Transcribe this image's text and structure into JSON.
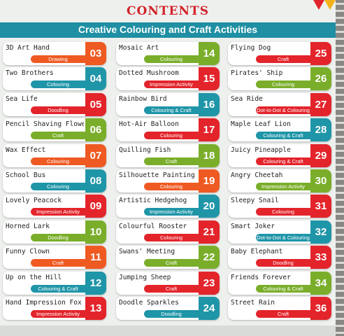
{
  "heading": "CONTENTS",
  "banner": "Creative Colouring and Craft Activities",
  "colors": {
    "orange": "#ef5a22",
    "teal": "#1f95a8",
    "red": "#e3242b",
    "green": "#7aae2a"
  },
  "columns": [
    [
      {
        "title": "3D Art Hand",
        "tag": "Drawing",
        "num": "03",
        "color": "orange"
      },
      {
        "title": "Two Brothers",
        "tag": "Colouring",
        "num": "04",
        "color": "teal"
      },
      {
        "title": "Sea Life",
        "tag": "Doodling",
        "num": "05",
        "color": "red"
      },
      {
        "title": "Pencil Shaving Flowers",
        "tag": "Craft",
        "num": "06",
        "color": "green"
      },
      {
        "title": "Wax Effect",
        "tag": "Colouring",
        "num": "07",
        "color": "orange"
      },
      {
        "title": "School Bus",
        "tag": "Colouring",
        "num": "08",
        "color": "teal"
      },
      {
        "title": "Lovely Peacock",
        "tag": "Impression Activity",
        "num": "09",
        "color": "red"
      },
      {
        "title": "Horned Lark",
        "tag": "Doodling",
        "num": "10",
        "color": "green"
      },
      {
        "title": "Funny Clown",
        "tag": "Craft",
        "num": "11",
        "color": "orange"
      },
      {
        "title": "Up on the Hill",
        "tag": "Colouring & Craft",
        "num": "12",
        "color": "teal"
      },
      {
        "title": "Hand Impression Fox",
        "tag": "Impression Activity",
        "num": "13",
        "color": "red"
      }
    ],
    [
      {
        "title": "Mosaic Art",
        "tag": "Colouring",
        "num": "14",
        "color": "green"
      },
      {
        "title": "Dotted Mushroom",
        "tag": "Impression Activity",
        "num": "15",
        "color": "red"
      },
      {
        "title": "Rainbow Bird",
        "tag": "Colouring & Craft",
        "num": "16",
        "color": "teal"
      },
      {
        "title": "Hot-Air Balloon",
        "tag": "Colouring",
        "num": "17",
        "color": "red"
      },
      {
        "title": "Quilling Fish",
        "tag": "Craft",
        "num": "18",
        "color": "green"
      },
      {
        "title": "Silhouette Painting",
        "tag": "Colouring",
        "num": "19",
        "color": "orange"
      },
      {
        "title": "Artistic Hedgehog",
        "tag": "Impression Activity",
        "num": "20",
        "color": "teal"
      },
      {
        "title": "Colourful Rooster",
        "tag": "Colouring",
        "num": "21",
        "color": "red"
      },
      {
        "title": "Swans' Meeting",
        "tag": "Craft",
        "num": "22",
        "color": "green"
      },
      {
        "title": "Jumping Sheep",
        "tag": "Craft",
        "num": "23",
        "color": "red"
      },
      {
        "title": "Doodle Sparkles",
        "tag": "Doodling",
        "num": "24",
        "color": "teal"
      }
    ],
    [
      {
        "title": "Flying Dog",
        "tag": "Craft",
        "num": "25",
        "color": "red"
      },
      {
        "title": "Pirates' Ship",
        "tag": "Colouring",
        "num": "26",
        "color": "green"
      },
      {
        "title": "Sea Ride",
        "tag": "Dot-to-Dot & Colouring",
        "num": "27",
        "color": "red"
      },
      {
        "title": "Maple Leaf Lion",
        "tag": "Colouring & Craft",
        "num": "28",
        "color": "teal"
      },
      {
        "title": "Juicy Pineapple",
        "tag": "Colouring & Craft",
        "num": "29",
        "color": "red"
      },
      {
        "title": "Angry Cheetah",
        "tag": "Impression Activity",
        "num": "30",
        "color": "green"
      },
      {
        "title": "Sleepy Snail",
        "tag": "Colouring",
        "num": "31",
        "color": "red"
      },
      {
        "title": "Smart Joker",
        "tag": "Dot-to-Dot & Colouring",
        "num": "32",
        "color": "teal"
      },
      {
        "title": "Baby Elephant",
        "tag": "Doodling",
        "num": "33",
        "color": "red"
      },
      {
        "title": "Friends Forever",
        "tag": "Colouring & Craft",
        "num": "34",
        "color": "green"
      },
      {
        "title": "Street Rain",
        "tag": "Craft",
        "num": "36",
        "color": "red"
      }
    ]
  ]
}
